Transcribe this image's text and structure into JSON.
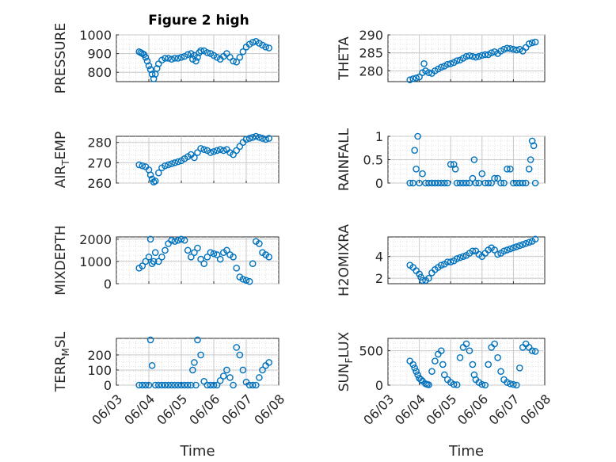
{
  "figure_title": "Figure 2 high",
  "x_ticks": [
    "06/03",
    "06/04",
    "06/05",
    "06/06",
    "06/07",
    "06/08"
  ],
  "marker_color": "#0072BD",
  "chart_data": [
    {
      "type": "scatter",
      "name": "pressure",
      "ylabel": "PRESSURE",
      "xlabel": "",
      "ylim": [
        750,
        1000
      ],
      "yticks": [
        800,
        900,
        1000
      ],
      "xlim": [
        0,
        5
      ],
      "grid": true,
      "x": [
        0.7,
        0.75,
        0.8,
        0.85,
        0.9,
        0.95,
        1.0,
        1.05,
        1.1,
        1.15,
        1.2,
        1.25,
        1.3,
        1.4,
        1.5,
        1.6,
        1.7,
        1.8,
        1.9,
        2.0,
        2.1,
        2.2,
        2.3,
        2.35,
        2.4,
        2.45,
        2.5,
        2.55,
        2.6,
        2.7,
        2.8,
        2.9,
        3.0,
        3.1,
        3.2,
        3.3,
        3.4,
        3.5,
        3.6,
        3.7,
        3.8,
        3.9,
        4.0,
        4.1,
        4.2,
        4.3,
        4.4,
        4.5,
        4.6,
        4.7
      ],
      "y": [
        910,
        905,
        900,
        895,
        880,
        860,
        835,
        815,
        790,
        765,
        790,
        820,
        845,
        865,
        875,
        875,
        870,
        875,
        875,
        880,
        885,
        895,
        900,
        870,
        890,
        860,
        880,
        905,
        915,
        915,
        905,
        900,
        890,
        880,
        870,
        885,
        900,
        880,
        860,
        855,
        880,
        910,
        935,
        950,
        960,
        965,
        955,
        945,
        935,
        930
      ]
    },
    {
      "type": "scatter",
      "name": "theta",
      "ylabel": "THETA",
      "xlabel": "",
      "ylim": [
        277,
        290
      ],
      "yticks": [
        280,
        285,
        290
      ],
      "xlim": [
        0,
        5
      ],
      "grid": true,
      "x": [
        0.7,
        0.8,
        0.9,
        1.0,
        1.1,
        1.15,
        1.2,
        1.3,
        1.4,
        1.5,
        1.6,
        1.7,
        1.8,
        1.9,
        2.0,
        2.1,
        2.2,
        2.3,
        2.4,
        2.5,
        2.6,
        2.7,
        2.8,
        2.9,
        3.0,
        3.1,
        3.2,
        3.3,
        3.4,
        3.5,
        3.6,
        3.7,
        3.8,
        3.9,
        4.0,
        4.1,
        4.2,
        4.3,
        4.4,
        4.5,
        4.6,
        4.7
      ],
      "y": [
        277.5,
        277.8,
        278,
        278.3,
        279.5,
        282,
        280,
        279.5,
        279.3,
        280,
        280.5,
        281,
        281.3,
        281.8,
        282,
        282.3,
        282.8,
        283,
        283.5,
        284,
        284.2,
        284,
        283.8,
        284,
        284.3,
        284.5,
        284.5,
        285,
        285.3,
        284.8,
        285.5,
        286,
        286.3,
        286.2,
        286,
        285.8,
        286,
        285.5,
        286.5,
        287.5,
        287.8,
        288
      ]
    },
    {
      "type": "scatter",
      "name": "air_temp",
      "ylabel": "AIR_TEMP",
      "xlabel": "",
      "ylim": [
        260,
        283
      ],
      "yticks": [
        260,
        270,
        280
      ],
      "xlim": [
        0,
        5
      ],
      "grid": true,
      "x": [
        0.7,
        0.8,
        0.9,
        1.0,
        1.05,
        1.1,
        1.15,
        1.2,
        1.3,
        1.4,
        1.5,
        1.6,
        1.7,
        1.8,
        1.9,
        2.0,
        2.1,
        2.2,
        2.3,
        2.4,
        2.5,
        2.6,
        2.7,
        2.8,
        2.9,
        3.0,
        3.1,
        3.2,
        3.3,
        3.4,
        3.5,
        3.6,
        3.7,
        3.8,
        3.9,
        4.0,
        4.1,
        4.2,
        4.3,
        4.4,
        4.5,
        4.6,
        4.7
      ],
      "y": [
        269,
        268.5,
        268,
        266.5,
        264,
        262,
        260.5,
        261,
        265,
        267.5,
        268.5,
        269,
        269.5,
        270,
        270.5,
        271,
        272,
        273,
        274,
        272.5,
        275,
        277,
        276.5,
        276,
        275,
        275.5,
        276,
        276.5,
        276,
        276.5,
        275,
        274,
        276,
        278,
        280,
        281.5,
        282,
        282.5,
        283,
        282.5,
        282,
        281.5,
        282
      ]
    },
    {
      "type": "scatter",
      "name": "rainfall",
      "ylabel": "RAINFALL",
      "xlabel": "",
      "ylim": [
        0,
        1
      ],
      "yticks": [
        0,
        0.5,
        1
      ],
      "xlim": [
        0,
        5
      ],
      "grid": true,
      "x": [
        0.7,
        0.8,
        0.85,
        0.9,
        0.95,
        1.0,
        1.1,
        1.2,
        1.3,
        1.4,
        1.5,
        1.6,
        1.7,
        1.8,
        1.9,
        2.0,
        2.1,
        2.15,
        2.2,
        2.3,
        2.4,
        2.5,
        2.6,
        2.7,
        2.75,
        2.8,
        2.9,
        3.0,
        3.1,
        3.2,
        3.3,
        3.4,
        3.5,
        3.6,
        3.7,
        3.8,
        3.9,
        4.0,
        4.1,
        4.2,
        4.3,
        4.4,
        4.5,
        4.55,
        4.6,
        4.65,
        4.7
      ],
      "y": [
        0,
        0,
        0.7,
        0.3,
        1.0,
        0,
        0.2,
        0,
        0,
        0,
        0,
        0,
        0,
        0,
        0,
        0.4,
        0.4,
        0.3,
        0,
        0,
        0,
        0,
        0,
        0.1,
        0.5,
        0,
        0,
        0.2,
        0,
        0,
        0,
        0.1,
        0.1,
        0,
        0,
        0.3,
        0.3,
        0,
        0,
        0,
        0,
        0,
        0.3,
        0.5,
        0.9,
        0.8,
        0
      ]
    },
    {
      "type": "scatter",
      "name": "mixdepth",
      "ylabel": "MIXDEPTH",
      "xlabel": "",
      "ylim": [
        0,
        2100
      ],
      "yticks": [
        0,
        1000,
        2000
      ],
      "xlim": [
        0,
        5
      ],
      "grid": true,
      "x": [
        0.7,
        0.8,
        0.9,
        1.0,
        1.05,
        1.1,
        1.15,
        1.2,
        1.3,
        1.4,
        1.5,
        1.6,
        1.7,
        1.8,
        1.9,
        2.0,
        2.1,
        2.2,
        2.3,
        2.4,
        2.5,
        2.6,
        2.7,
        2.8,
        2.9,
        3.0,
        3.1,
        3.2,
        3.3,
        3.4,
        3.5,
        3.6,
        3.7,
        3.8,
        3.9,
        4.0,
        4.1,
        4.2,
        4.3,
        4.4,
        4.5,
        4.6,
        4.7
      ],
      "y": [
        700,
        800,
        1000,
        1200,
        2000,
        900,
        1000,
        1400,
        1000,
        1200,
        1500,
        1800,
        1950,
        1900,
        1950,
        2000,
        1950,
        1500,
        1200,
        1400,
        1600,
        1100,
        900,
        1200,
        1400,
        1350,
        1300,
        1100,
        1400,
        1500,
        1300,
        1200,
        700,
        300,
        200,
        150,
        100,
        900,
        1900,
        1800,
        1400,
        1300,
        1200
      ]
    },
    {
      "type": "scatter",
      "name": "h2omixra",
      "ylabel": "H2OMIXRA",
      "xlabel": "",
      "ylim": [
        1.5,
        5.8
      ],
      "yticks": [
        2,
        4
      ],
      "xlim": [
        0,
        5
      ],
      "grid": true,
      "x": [
        0.7,
        0.8,
        0.9,
        1.0,
        1.05,
        1.1,
        1.2,
        1.3,
        1.4,
        1.5,
        1.6,
        1.7,
        1.8,
        1.9,
        2.0,
        2.1,
        2.2,
        2.3,
        2.4,
        2.5,
        2.6,
        2.7,
        2.8,
        2.9,
        3.0,
        3.1,
        3.2,
        3.3,
        3.4,
        3.5,
        3.6,
        3.7,
        3.8,
        3.9,
        4.0,
        4.1,
        4.2,
        4.3,
        4.4,
        4.5,
        4.6,
        4.7
      ],
      "y": [
        3.2,
        3.0,
        2.7,
        2.4,
        2.1,
        1.8,
        1.8,
        2.0,
        2.5,
        2.8,
        3.0,
        3.2,
        3.3,
        3.5,
        3.5,
        3.6,
        3.8,
        3.9,
        4.0,
        4.1,
        4.3,
        4.5,
        4.5,
        4.2,
        4.0,
        4.3,
        4.6,
        4.8,
        4.6,
        4.2,
        4.3,
        4.5,
        4.6,
        4.7,
        4.8,
        4.9,
        5.0,
        5.1,
        5.2,
        5.3,
        5.4,
        5.6
      ]
    },
    {
      "type": "scatter",
      "name": "terr_msl",
      "ylabel": "TERR_MSL",
      "xlabel": "Time",
      "ylim": [
        0,
        310
      ],
      "yticks": [
        0,
        100,
        200
      ],
      "xlim": [
        0,
        5
      ],
      "grid": true,
      "x": [
        0.7,
        0.8,
        0.9,
        1.0,
        1.05,
        1.1,
        1.2,
        1.3,
        1.4,
        1.5,
        1.6,
        1.7,
        1.8,
        1.9,
        2.0,
        2.1,
        2.2,
        2.3,
        2.35,
        2.4,
        2.45,
        2.5,
        2.6,
        2.7,
        2.8,
        2.9,
        3.0,
        3.1,
        3.2,
        3.3,
        3.4,
        3.5,
        3.6,
        3.7,
        3.8,
        3.9,
        4.0,
        4.1,
        4.2,
        4.3,
        4.4,
        4.5,
        4.6,
        4.7
      ],
      "y": [
        0,
        0,
        0,
        0,
        300,
        130,
        0,
        0,
        0,
        0,
        0,
        0,
        0,
        0,
        0,
        0,
        0,
        0,
        100,
        150,
        0,
        300,
        200,
        25,
        0,
        0,
        0,
        0,
        30,
        60,
        100,
        50,
        0,
        250,
        200,
        100,
        20,
        0,
        0,
        0,
        50,
        100,
        130,
        150
      ]
    },
    {
      "type": "scatter",
      "name": "sun_flux",
      "ylabel": "SUN_FLUX",
      "xlabel": "Time",
      "ylim": [
        0,
        680
      ],
      "yticks": [
        0,
        500
      ],
      "xlim": [
        0,
        5
      ],
      "grid": true,
      "x": [
        0.7,
        0.8,
        0.85,
        0.9,
        0.95,
        1.0,
        1.05,
        1.1,
        1.2,
        1.25,
        1.3,
        1.4,
        1.5,
        1.6,
        1.7,
        1.75,
        1.8,
        1.9,
        2.0,
        2.1,
        2.2,
        2.3,
        2.4,
        2.5,
        2.6,
        2.7,
        2.75,
        2.8,
        2.9,
        3.0,
        3.1,
        3.2,
        3.3,
        3.4,
        3.5,
        3.6,
        3.7,
        3.8,
        3.9,
        4.0,
        4.1,
        4.2,
        4.3,
        4.4,
        4.5,
        4.6,
        4.7
      ],
      "y": [
        350,
        300,
        250,
        200,
        150,
        100,
        80,
        60,
        20,
        10,
        5,
        200,
        350,
        450,
        500,
        300,
        150,
        80,
        40,
        10,
        5,
        400,
        550,
        600,
        500,
        300,
        150,
        80,
        40,
        10,
        0,
        300,
        550,
        600,
        400,
        200,
        80,
        40,
        20,
        10,
        0,
        250,
        550,
        600,
        550,
        500,
        490
      ]
    }
  ]
}
